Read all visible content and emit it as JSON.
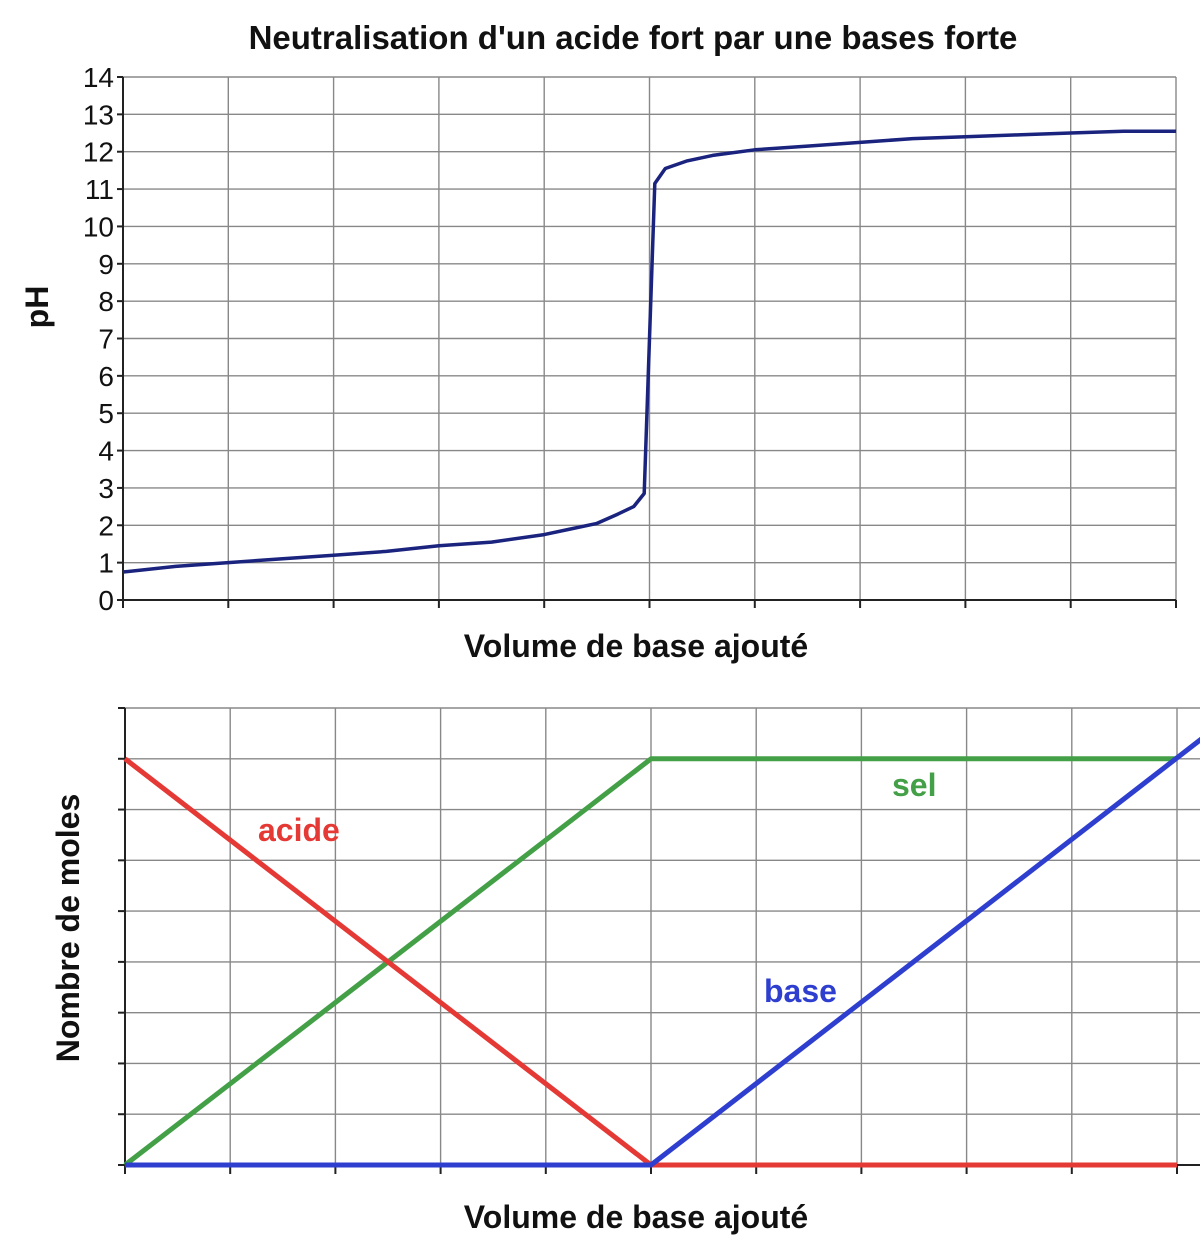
{
  "chart_data": [
    {
      "type": "line",
      "title": "Neutralisation d'un acide fort par une bases forte",
      "xlabel": "Volume de base ajouté",
      "ylabel": "pH",
      "xlim": [
        0,
        10
      ],
      "ylim": [
        0,
        14
      ],
      "yticks": [
        "0",
        "1",
        "2",
        "3",
        "4",
        "5",
        "6",
        "7",
        "8",
        "9",
        "10",
        "11",
        "12",
        "13",
        "14"
      ],
      "grid": true,
      "line_color": "#1a237e",
      "series": [
        {
          "x": [
            0,
            0.5,
            1,
            1.5,
            2,
            2.5,
            3,
            3.5,
            4,
            4.25,
            4.5,
            4.7,
            4.85,
            4.95,
            5.05,
            5.15,
            5.35,
            5.6,
            6,
            6.5,
            7,
            7.5,
            8,
            8.5,
            9,
            9.5,
            10
          ],
          "y": [
            0.75,
            0.9,
            1.0,
            1.1,
            1.2,
            1.3,
            1.45,
            1.55,
            1.75,
            1.9,
            2.05,
            2.3,
            2.5,
            2.85,
            11.15,
            11.55,
            11.75,
            11.9,
            12.05,
            12.15,
            12.25,
            12.35,
            12.4,
            12.45,
            12.5,
            12.55,
            12.55
          ]
        }
      ]
    },
    {
      "type": "line",
      "xlabel": "Volume de base ajouté",
      "ylabel": "Nombre de moles",
      "xlim": [
        0,
        10
      ],
      "ylim": [
        0,
        9
      ],
      "grid": true,
      "series": [
        {
          "name": "acide",
          "color": "#e53935",
          "x": [
            0,
            5,
            10
          ],
          "y": [
            8,
            0,
            0
          ]
        },
        {
          "name": "sel",
          "color": "#43a047",
          "x": [
            0,
            5,
            10
          ],
          "y": [
            0,
            8,
            8
          ]
        },
        {
          "name": "base",
          "color": "#2e3fd0",
          "x": [
            0,
            5,
            10.3
          ],
          "y": [
            0,
            0,
            8.5
          ]
        }
      ]
    }
  ]
}
